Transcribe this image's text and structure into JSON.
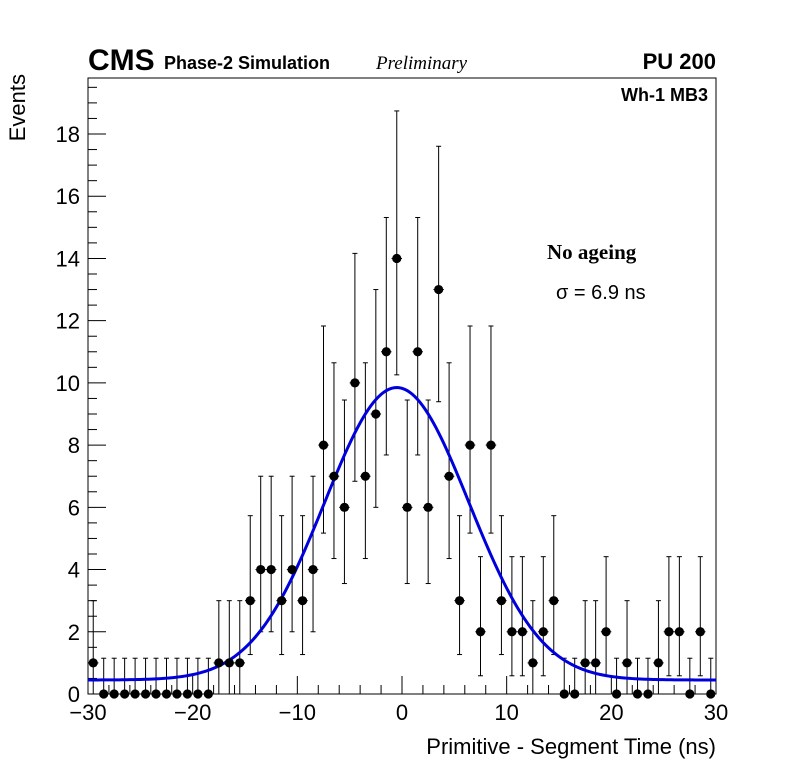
{
  "header": {
    "experiment": "CMS",
    "subtitle": "Phase-2 Simulation",
    "status": "Preliminary",
    "pileup": "PU 200",
    "chamber": "Wh-1 MB3"
  },
  "annotation": {
    "condition": "No ageing",
    "sigma_text": "σ = 6.9 ns"
  },
  "chart_data": {
    "type": "scatter",
    "title": "",
    "xlabel": "Primitive - Segment Time (ns)",
    "ylabel": "Events",
    "xlim": [
      -30,
      30
    ],
    "ylim": [
      0,
      19.8
    ],
    "x_ticks": [
      -30,
      -20,
      -10,
      0,
      10,
      20,
      30
    ],
    "x_tick_labels": [
      "−30",
      "−20",
      "−10",
      "0",
      "10",
      "20",
      "30"
    ],
    "y_ticks": [
      0,
      2,
      4,
      6,
      8,
      10,
      12,
      14,
      16,
      18
    ],
    "y_tick_labels": [
      "0",
      "2",
      "4",
      "6",
      "8",
      "10",
      "12",
      "14",
      "16",
      "18"
    ],
    "bin_width": 1,
    "series": [
      {
        "name": "Entries",
        "color": "#000000",
        "x": [
          -29.5,
          -28.5,
          -27.5,
          -26.5,
          -25.5,
          -24.5,
          -23.5,
          -22.5,
          -21.5,
          -20.5,
          -19.5,
          -18.5,
          -17.5,
          -16.5,
          -15.5,
          -14.5,
          -13.5,
          -12.5,
          -11.5,
          -10.5,
          -9.5,
          -8.5,
          -7.5,
          -6.5,
          -5.5,
          -4.5,
          -3.5,
          -2.5,
          -1.5,
          -0.5,
          0.5,
          1.5,
          2.5,
          3.5,
          4.5,
          5.5,
          6.5,
          7.5,
          8.5,
          9.5,
          10.5,
          11.5,
          12.5,
          13.5,
          14.5,
          15.5,
          16.5,
          17.5,
          18.5,
          19.5,
          20.5,
          21.5,
          22.5,
          23.5,
          24.5,
          25.5,
          26.5,
          27.5,
          28.5,
          29.5
        ],
        "values": [
          1,
          0,
          0,
          0,
          0,
          0,
          0,
          0,
          0,
          0,
          0,
          0,
          1,
          1,
          1,
          3,
          4,
          4,
          3,
          4,
          3,
          4,
          8,
          7,
          6,
          10,
          7,
          9,
          11,
          14,
          6,
          11,
          6,
          13,
          7,
          3,
          8,
          2,
          8,
          3,
          2,
          2,
          1,
          2,
          3,
          0,
          0,
          1,
          1,
          2,
          0,
          1,
          0,
          0,
          1,
          2,
          2,
          0,
          2,
          0
        ]
      },
      {
        "name": "Gaussian fit",
        "type": "line",
        "color": "#0000dd",
        "amplitude": 9.4,
        "mean": -0.5,
        "sigma": 6.9,
        "baseline": 0.45
      }
    ]
  }
}
